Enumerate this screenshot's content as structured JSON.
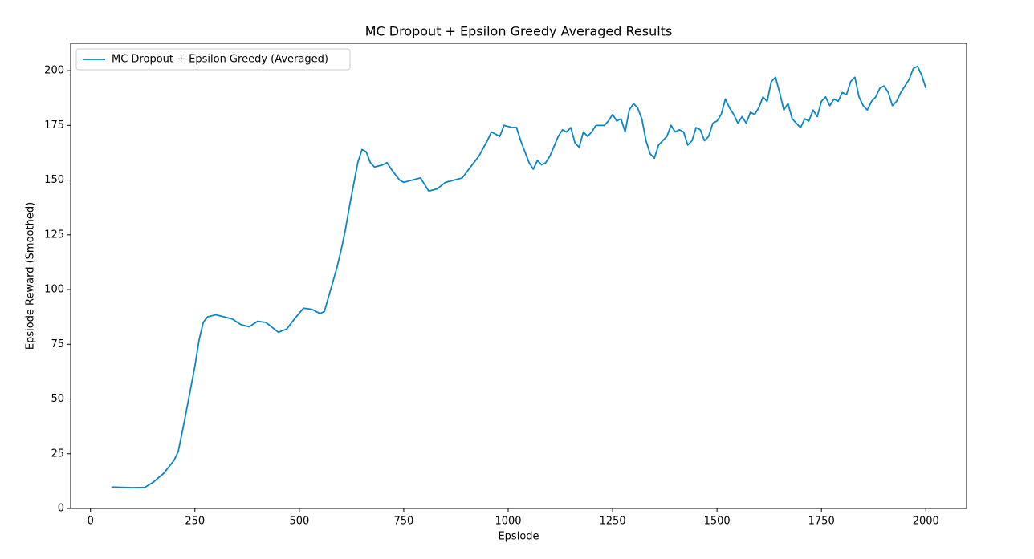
{
  "chart_data": {
    "type": "line",
    "title": "MC Dropout + Epsilon Greedy Averaged Results",
    "x_label": "Epsiode",
    "y_label": "Epsiode Reward (Smoothed)",
    "x": [
      50,
      100,
      130,
      150,
      175,
      200,
      210,
      225,
      240,
      250,
      260,
      270,
      280,
      290,
      300,
      320,
      340,
      360,
      380,
      400,
      420,
      440,
      450,
      470,
      490,
      510,
      530,
      550,
      560,
      575,
      590,
      600,
      610,
      620,
      630,
      640,
      650,
      660,
      670,
      680,
      700,
      710,
      720,
      740,
      750,
      770,
      790,
      810,
      830,
      850,
      870,
      890,
      910,
      930,
      950,
      960,
      970,
      980,
      990,
      1010,
      1020,
      1030,
      1040,
      1050,
      1060,
      1070,
      1080,
      1090,
      1100,
      1120,
      1130,
      1140,
      1150,
      1160,
      1170,
      1180,
      1190,
      1200,
      1210,
      1230,
      1240,
      1250,
      1260,
      1270,
      1280,
      1290,
      1300,
      1310,
      1320,
      1330,
      1340,
      1350,
      1360,
      1370,
      1380,
      1390,
      1400,
      1410,
      1420,
      1430,
      1440,
      1450,
      1460,
      1470,
      1480,
      1490,
      1500,
      1510,
      1520,
      1530,
      1540,
      1550,
      1560,
      1570,
      1580,
      1590,
      1600,
      1610,
      1620,
      1630,
      1640,
      1650,
      1660,
      1670,
      1680,
      1690,
      1700,
      1710,
      1720,
      1730,
      1740,
      1750,
      1760,
      1770,
      1780,
      1790,
      1800,
      1810,
      1820,
      1830,
      1840,
      1850,
      1860,
      1870,
      1880,
      1890,
      1900,
      1910,
      1920,
      1930,
      1940,
      1950,
      1960,
      1970,
      1980,
      1990,
      2000
    ],
    "series": [
      {
        "name": "MC Dropout + Epsilon Greedy (Averaged)",
        "color": "#0a86c4",
        "values": [
          9.8,
          9.5,
          9.6,
          12,
          16,
          22,
          26,
          40,
          55,
          65,
          77,
          85,
          87.5,
          88,
          88.5,
          87.5,
          86.5,
          84,
          83,
          85.5,
          85,
          82,
          80.5,
          82,
          87,
          91.5,
          91,
          89,
          90,
          100,
          110,
          118,
          127,
          138,
          148,
          158,
          164,
          163,
          158,
          156,
          157,
          158,
          155,
          150,
          149,
          150,
          151,
          145,
          146,
          149,
          150,
          151,
          156,
          161,
          168,
          172,
          171,
          170,
          175,
          174,
          174,
          168,
          163,
          158,
          155,
          159,
          157,
          158,
          161,
          170,
          173,
          172,
          174,
          167,
          165,
          172,
          170,
          172,
          175,
          175,
          177,
          180,
          177,
          178,
          172,
          182,
          185,
          183,
          178,
          168,
          162,
          160,
          166,
          168,
          170,
          175,
          172,
          173,
          172,
          166,
          168,
          174,
          173,
          168,
          170,
          176,
          177,
          180,
          187,
          183,
          180,
          176,
          179,
          176,
          181,
          180,
          183,
          188,
          186,
          195,
          197,
          190,
          182,
          185,
          178,
          176,
          174,
          178,
          177,
          182,
          179,
          186,
          188,
          184,
          187,
          186,
          190,
          189,
          195,
          197,
          188,
          184,
          182,
          186,
          188,
          192,
          193,
          190,
          184,
          186,
          190,
          193,
          196,
          201,
          202,
          198,
          192
        ]
      }
    ],
    "xlim": [
      -47.5,
      2097.5
    ],
    "ylim": [
      0,
      212.5
    ],
    "xticks": [
      0,
      250,
      500,
      750,
      1000,
      1250,
      1500,
      1750,
      2000
    ],
    "yticks": [
      0,
      25,
      50,
      75,
      100,
      125,
      150,
      175,
      200
    ],
    "grid": false,
    "legend": "upper left"
  }
}
